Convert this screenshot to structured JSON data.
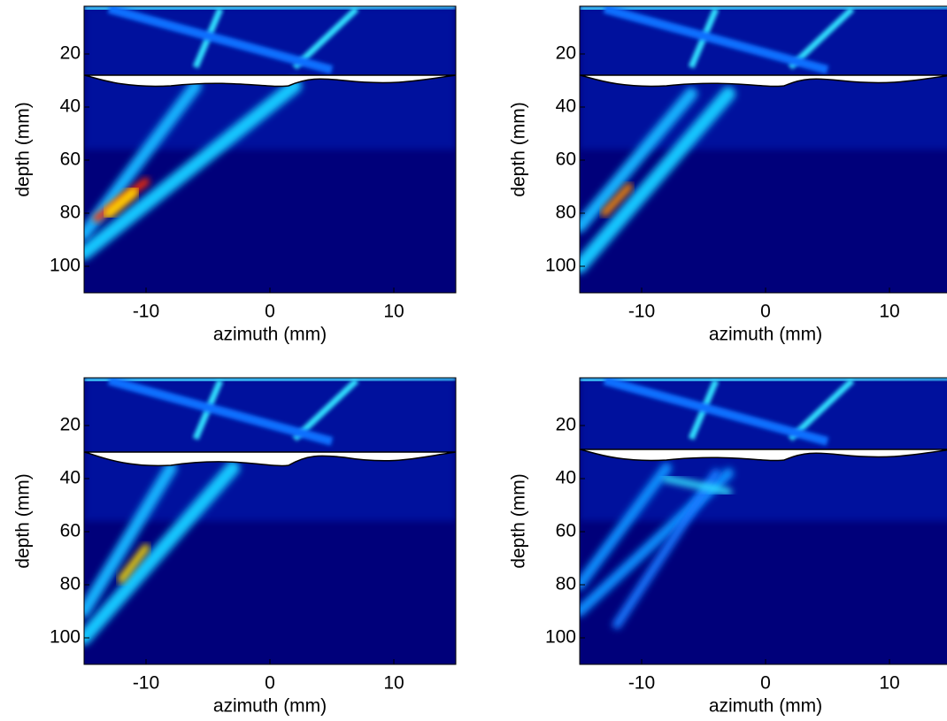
{
  "chart_data": [
    {
      "type": "heatmap",
      "xlabel": "azimuth (mm)",
      "ylabel": "depth (mm)",
      "xlim": [
        -15,
        15
      ],
      "ylim": [
        2,
        110
      ],
      "y_reversed": true,
      "xticks": [
        -10,
        0,
        10
      ],
      "yticks": [
        20,
        40,
        60,
        80,
        100
      ]
    },
    {
      "type": "heatmap",
      "xlabel": "azimuth (mm)",
      "ylabel": "depth (mm)",
      "xlim": [
        -15,
        15
      ],
      "ylim": [
        2,
        110
      ],
      "y_reversed": true,
      "xticks": [
        -10,
        0,
        10
      ],
      "yticks": [
        20,
        40,
        60,
        80,
        100
      ]
    },
    {
      "type": "heatmap",
      "xlabel": "azimuth (mm)",
      "ylabel": "depth (mm)",
      "xlim": [
        -15,
        15
      ],
      "ylim": [
        2,
        110
      ],
      "y_reversed": true,
      "xticks": [
        -10,
        0,
        10
      ],
      "yticks": [
        20,
        40,
        60,
        80,
        100
      ]
    },
    {
      "type": "heatmap",
      "xlabel": "azimuth (mm)",
      "ylabel": "depth (mm)",
      "xlim": [
        -15,
        15
      ],
      "ylim": [
        2,
        110
      ],
      "y_reversed": true,
      "xticks": [
        -10,
        0,
        10
      ],
      "yticks": [
        20,
        40,
        60,
        80,
        100
      ]
    }
  ]
}
